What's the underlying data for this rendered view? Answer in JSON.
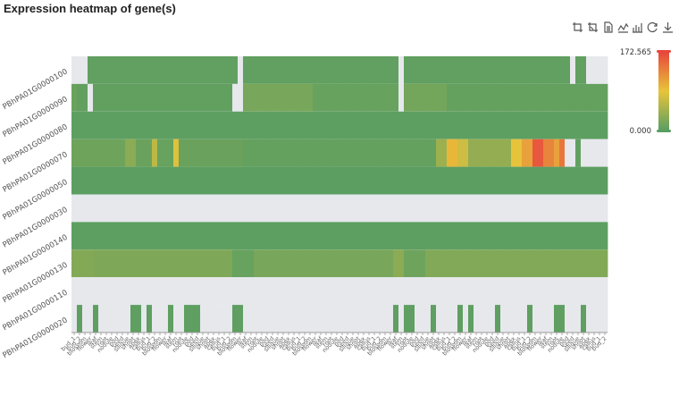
{
  "header": {
    "title": "Expression heatmap of gene(s)"
  },
  "toolbar": {
    "tools": [
      {
        "icon": "zoom-icon"
      },
      {
        "icon": "zoom-reset-icon"
      },
      {
        "icon": "data-view-icon"
      },
      {
        "icon": "line-chart-icon"
      },
      {
        "icon": "bar-chart-icon"
      },
      {
        "icon": "restore-icon"
      },
      {
        "icon": "download-icon"
      }
    ]
  },
  "colors": {
    "low": "#5a9e62",
    "mid": "#e8c43a",
    "high": "#e8463c",
    "missing": "#e6e8ec"
  },
  "chart_data": {
    "type": "heatmap",
    "title": "Expression heatmap of gene(s)",
    "visual_map": {
      "min": "0.000",
      "max": "172.565",
      "min_value": 0,
      "max_value": 172.565
    },
    "genes": [
      "PBhPA01G0000100",
      "PBhPA01G0000090",
      "PBhPA01G0000080",
      "PBhPA01G0000070",
      "PBhPA01G0000050",
      "PBhPA01G0000030",
      "PBhPA01G0000140",
      "PBhPA01G0000130",
      "PBhPA01G0000110",
      "PBhPA01G0000020"
    ],
    "samples_count": 100,
    "x_labels_visible": [
      "bud_1",
      "bud_2",
      "blossom",
      "flower",
      "leaf",
      "stem",
      "root",
      "nodule",
      "pod",
      "seed",
      "silique",
      "shoot",
      "apex",
      "callus"
    ],
    "notes": "x tick labels are rotated ~45 degrees and mostly illegible",
    "rows": [
      {
        "gene": "PBhPA01G0000100",
        "segments": [
          [
            0,
            3,
            "na"
          ],
          [
            3,
            31,
            4
          ],
          [
            31,
            32,
            "na"
          ],
          [
            32,
            61,
            4
          ],
          [
            61,
            62,
            "na"
          ],
          [
            62,
            93,
            4
          ],
          [
            93,
            94,
            "na"
          ],
          [
            94,
            96,
            4
          ],
          [
            96,
            97,
            "na"
          ],
          [
            97,
            100,
            "na"
          ]
        ]
      },
      {
        "gene": "PBhPA01G0000090",
        "segments": [
          [
            0,
            1,
            10
          ],
          [
            1,
            3,
            5
          ],
          [
            3,
            4,
            "na"
          ],
          [
            4,
            30,
            5
          ],
          [
            30,
            32,
            "na"
          ],
          [
            32,
            45,
            18
          ],
          [
            45,
            61,
            8
          ],
          [
            61,
            62,
            "na"
          ],
          [
            62,
            70,
            15
          ],
          [
            70,
            100,
            6
          ]
        ]
      },
      {
        "gene": "PBhPA01G0000080",
        "segments": [
          [
            0,
            100,
            2
          ]
        ]
      },
      {
        "gene": "PBhPA01G0000070",
        "segments": [
          [
            0,
            10,
            12
          ],
          [
            10,
            12,
            30
          ],
          [
            12,
            15,
            10
          ],
          [
            15,
            16,
            60
          ],
          [
            16,
            19,
            8
          ],
          [
            19,
            20,
            80
          ],
          [
            20,
            32,
            10
          ],
          [
            32,
            68,
            6
          ],
          [
            68,
            70,
            40
          ],
          [
            70,
            72,
            95
          ],
          [
            72,
            74,
            70
          ],
          [
            74,
            82,
            35
          ],
          [
            82,
            84,
            85
          ],
          [
            84,
            86,
            110
          ],
          [
            86,
            88,
            160
          ],
          [
            88,
            90,
            130
          ],
          [
            90,
            91,
            110
          ],
          [
            91,
            92,
            140
          ],
          [
            92,
            94,
            "na"
          ],
          [
            94,
            95,
            4
          ],
          [
            95,
            98,
            "na"
          ],
          [
            98,
            100,
            "na"
          ]
        ]
      },
      {
        "gene": "PBhPA01G0000050",
        "segments": [
          [
            0,
            100,
            1
          ]
        ]
      },
      {
        "gene": "PBhPA01G0000030",
        "segments": [
          [
            0,
            100,
            "na"
          ]
        ]
      },
      {
        "gene": "PBhPA01G0000140",
        "segments": [
          [
            0,
            100,
            2
          ]
        ]
      },
      {
        "gene": "PBhPA01G0000130",
        "segments": [
          [
            0,
            4,
            25
          ],
          [
            4,
            30,
            22
          ],
          [
            30,
            34,
            8
          ],
          [
            34,
            60,
            18
          ],
          [
            60,
            62,
            30
          ],
          [
            62,
            66,
            12
          ],
          [
            66,
            100,
            24
          ]
        ]
      },
      {
        "gene": "PBhPA01G0000110",
        "segments": [
          [
            0,
            100,
            "na"
          ]
        ]
      },
      {
        "gene": "PBhPA01G0000020",
        "segments": [
          [
            0,
            1,
            "na"
          ],
          [
            1,
            2,
            3
          ],
          [
            2,
            4,
            "na"
          ],
          [
            4,
            5,
            3
          ],
          [
            5,
            11,
            "na"
          ],
          [
            11,
            13,
            3
          ],
          [
            13,
            14,
            "na"
          ],
          [
            14,
            15,
            3
          ],
          [
            15,
            18,
            "na"
          ],
          [
            18,
            19,
            3
          ],
          [
            19,
            21,
            "na"
          ],
          [
            21,
            22,
            3
          ],
          [
            22,
            24,
            3
          ],
          [
            24,
            25,
            "na"
          ],
          [
            25,
            27,
            "na"
          ],
          [
            30,
            32,
            3
          ],
          [
            32,
            60,
            "na"
          ],
          [
            60,
            61,
            3
          ],
          [
            61,
            62,
            "na"
          ],
          [
            62,
            64,
            3
          ],
          [
            64,
            66,
            "na"
          ],
          [
            67,
            68,
            3
          ],
          [
            68,
            71,
            "na"
          ],
          [
            72,
            73,
            3
          ],
          [
            73,
            74,
            "na"
          ],
          [
            74,
            75,
            3
          ],
          [
            75,
            78,
            "na"
          ],
          [
            79,
            80,
            3
          ],
          [
            80,
            83,
            "na"
          ],
          [
            85,
            86,
            3
          ],
          [
            86,
            90,
            "na"
          ],
          [
            90,
            92,
            3
          ],
          [
            92,
            94,
            "na"
          ],
          [
            95,
            96,
            3
          ],
          [
            96,
            100,
            "na"
          ]
        ]
      }
    ]
  }
}
